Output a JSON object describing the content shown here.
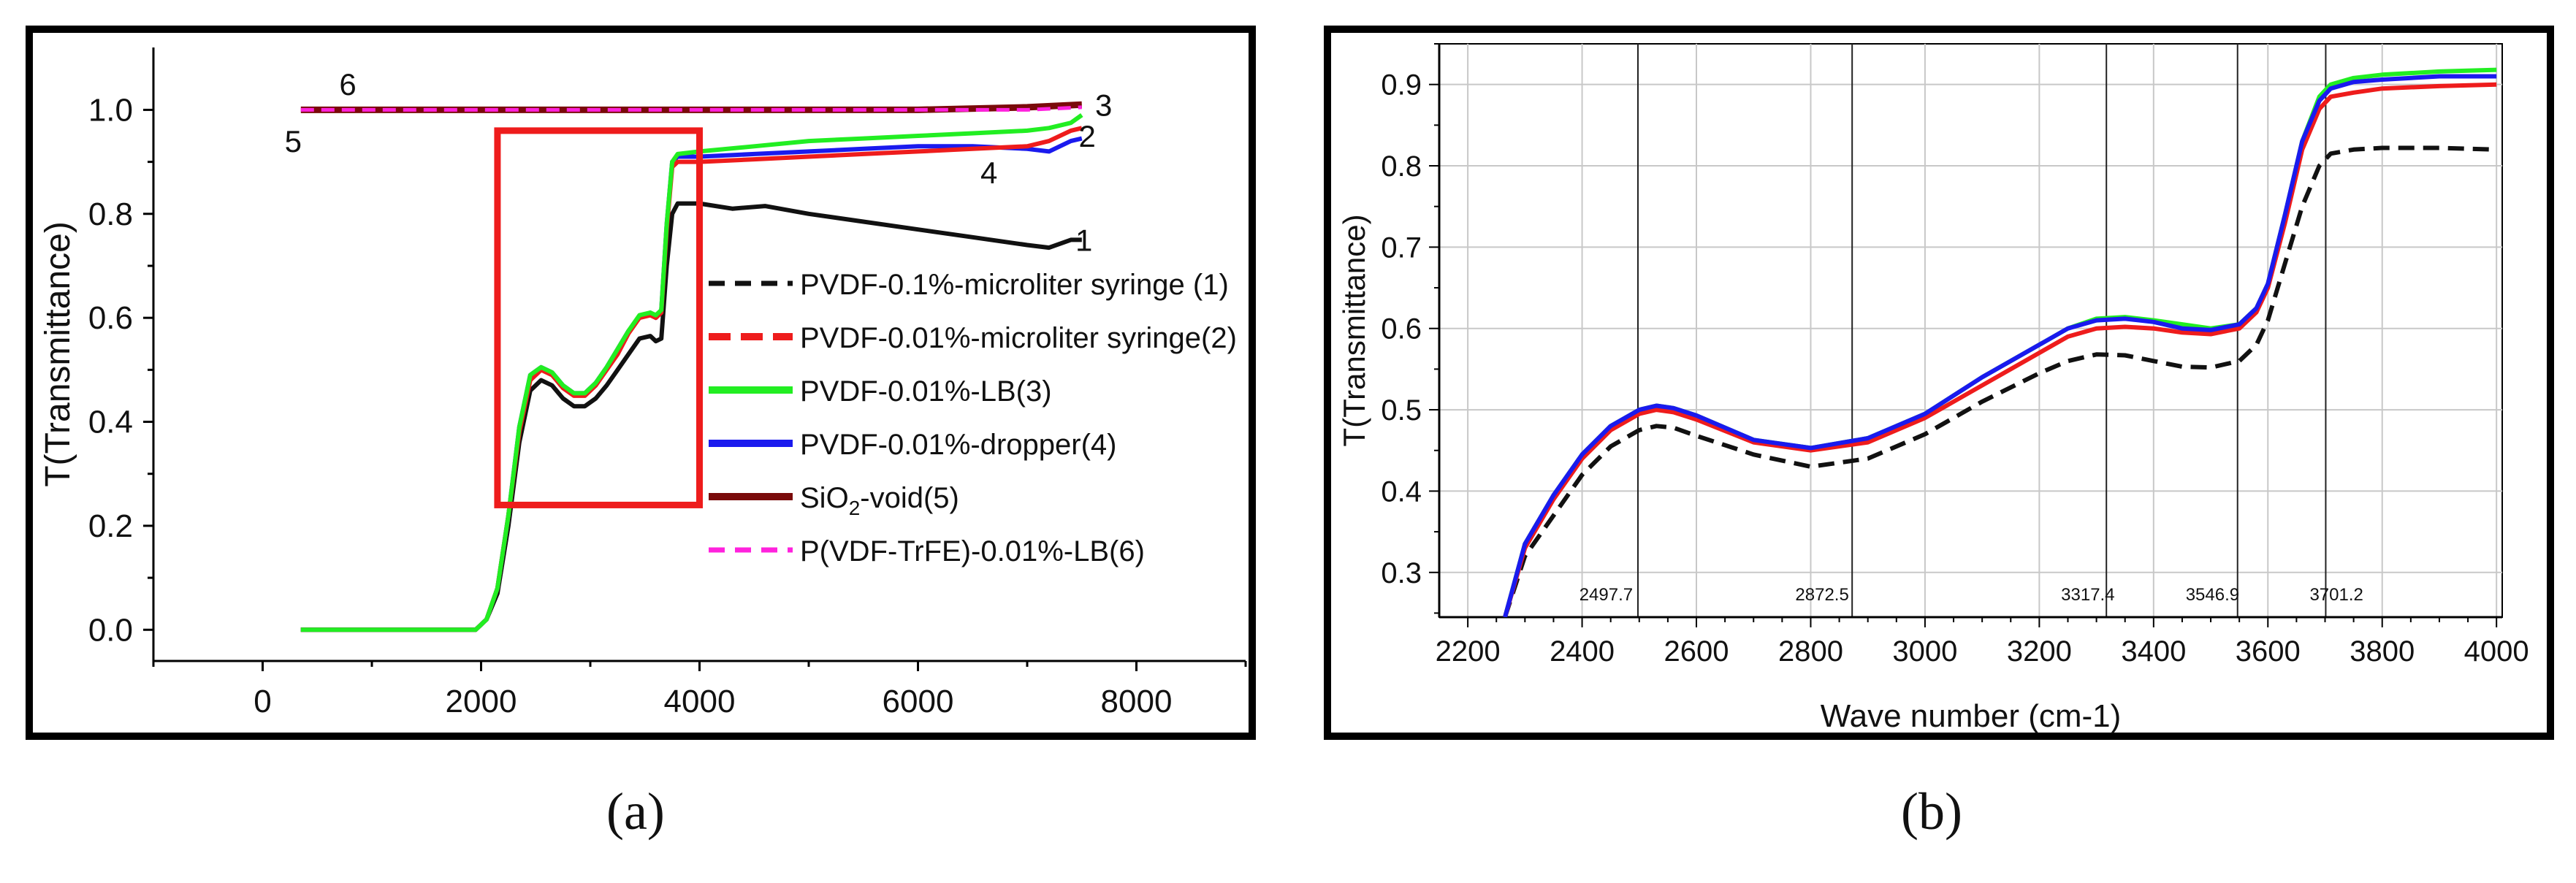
{
  "chart_data": [
    {
      "type": "line",
      "panel": "a",
      "xlabel": "",
      "ylabel": "T(Transmittance)",
      "xlim": [
        -1000,
        9000
      ],
      "ylim": [
        -0.06,
        1.12
      ],
      "xticks": [
        0,
        2000,
        4000,
        6000,
        8000
      ],
      "xtick_labels": [
        "0",
        "2000",
        "4000",
        "6000",
        "8000"
      ],
      "yticks": [
        0.0,
        0.2,
        0.4,
        0.6,
        0.8,
        1.0
      ],
      "ytick_labels": [
        "0.0",
        "0.2",
        "0.4",
        "0.6",
        "0.8",
        "1.0"
      ],
      "legend_position": "right",
      "highlight_box": {
        "x": [
          2150,
          4000
        ],
        "y": [
          0.24,
          0.96
        ],
        "color": "#ee1c1c"
      },
      "series": [
        {
          "name": "PVDF-0.1%-microliter syringe (1)",
          "color": "#111111",
          "dash": "dashed",
          "x": [
            350,
            1950,
            2050,
            2150,
            2250,
            2350,
            2450,
            2550,
            2650,
            2750,
            2850,
            2950,
            3050,
            3150,
            3250,
            3350,
            3450,
            3550,
            3600,
            3650,
            3700,
            3750,
            3800,
            4000,
            4300,
            4600,
            5000,
            5500,
            6000,
            6500,
            7000,
            7200,
            7400,
            7500
          ],
          "y": [
            0.0,
            0.0,
            0.02,
            0.07,
            0.2,
            0.36,
            0.46,
            0.48,
            0.47,
            0.445,
            0.43,
            0.43,
            0.445,
            0.47,
            0.5,
            0.53,
            0.56,
            0.565,
            0.555,
            0.56,
            0.7,
            0.8,
            0.82,
            0.82,
            0.81,
            0.815,
            0.8,
            0.785,
            0.77,
            0.755,
            0.74,
            0.735,
            0.75,
            0.75
          ]
        },
        {
          "name": "PVDF-0.01%-microliter syringe(2)",
          "color": "#ee1c1c",
          "dash": "dashed",
          "x": [
            350,
            1950,
            2050,
            2150,
            2250,
            2350,
            2450,
            2550,
            2650,
            2750,
            2850,
            2950,
            3050,
            3150,
            3250,
            3350,
            3450,
            3550,
            3600,
            3650,
            3700,
            3750,
            3800,
            4000,
            4500,
            5000,
            5500,
            6000,
            6500,
            7000,
            7200,
            7400,
            7500
          ],
          "y": [
            0.0,
            0.0,
            0.02,
            0.08,
            0.22,
            0.38,
            0.48,
            0.5,
            0.49,
            0.465,
            0.45,
            0.45,
            0.47,
            0.5,
            0.53,
            0.57,
            0.6,
            0.605,
            0.6,
            0.61,
            0.77,
            0.89,
            0.9,
            0.9,
            0.905,
            0.91,
            0.915,
            0.92,
            0.925,
            0.93,
            0.94,
            0.96,
            0.965
          ]
        },
        {
          "name": "PVDF-0.01%-LB(3)",
          "color": "#22ee22",
          "dash": "solid",
          "x": [
            350,
            1950,
            2050,
            2150,
            2250,
            2350,
            2450,
            2550,
            2650,
            2750,
            2850,
            2950,
            3050,
            3150,
            3250,
            3350,
            3450,
            3550,
            3600,
            3650,
            3700,
            3750,
            3800,
            4000,
            4500,
            5000,
            5500,
            6000,
            6500,
            7000,
            7200,
            7400,
            7500
          ],
          "y": [
            0.0,
            0.0,
            0.02,
            0.08,
            0.22,
            0.39,
            0.49,
            0.505,
            0.495,
            0.47,
            0.455,
            0.455,
            0.475,
            0.505,
            0.54,
            0.575,
            0.605,
            0.61,
            0.605,
            0.615,
            0.78,
            0.9,
            0.915,
            0.92,
            0.93,
            0.94,
            0.945,
            0.95,
            0.955,
            0.96,
            0.965,
            0.975,
            0.99
          ]
        },
        {
          "name": "PVDF-0.01%-dropper(4)",
          "color": "#1a1aee",
          "dash": "solid",
          "x": [
            350,
            1950,
            2050,
            2150,
            2250,
            2350,
            2450,
            2550,
            2650,
            2750,
            2850,
            2950,
            3050,
            3150,
            3250,
            3350,
            3450,
            3550,
            3600,
            3650,
            3700,
            3750,
            3800,
            4000,
            4500,
            5000,
            5500,
            6000,
            6500,
            7000,
            7200,
            7400,
            7500
          ],
          "y": [
            0.0,
            0.0,
            0.02,
            0.08,
            0.22,
            0.39,
            0.49,
            0.505,
            0.495,
            0.47,
            0.455,
            0.455,
            0.475,
            0.505,
            0.54,
            0.575,
            0.6,
            0.61,
            0.6,
            0.615,
            0.78,
            0.9,
            0.91,
            0.91,
            0.915,
            0.92,
            0.925,
            0.93,
            0.93,
            0.925,
            0.92,
            0.94,
            0.945
          ]
        },
        {
          "name": "SiO2-void(5)",
          "color": "#7a0a0a",
          "dash": "solid",
          "x": [
            350,
            2000,
            4000,
            6000,
            7000,
            7500
          ],
          "y": [
            1.0,
            1.0,
            1.0,
            1.0,
            1.005,
            1.01
          ]
        },
        {
          "name": "P(VDF-TrFE)-0.01%-LB(6)",
          "color": "#ff22dd",
          "dash": "dashed",
          "x": [
            350,
            2000,
            4000,
            6000,
            7000,
            7500
          ],
          "y": [
            1.0,
            1.0,
            1.0,
            1.0,
            1.0,
            1.005
          ]
        }
      ],
      "legend": [
        {
          "label": "PVDF-0.1%-microliter syringe (1)"
        },
        {
          "label": "PVDF-0.01%-microliter syringe(2)"
        },
        {
          "label": "PVDF-0.01%-LB(3)"
        },
        {
          "label": "PVDF-0.01%-dropper(4)"
        },
        {
          "label_main": "SiO",
          "label_sub": "2",
          "label_rest": "-void(5)"
        },
        {
          "label": "P(VDF-TrFE)-0.01%-LB(6)"
        }
      ],
      "curve_labels": [
        {
          "text": "1",
          "x": 7520,
          "y": 0.75
        },
        {
          "text": "2",
          "x": 7550,
          "y": 0.95
        },
        {
          "text": "3",
          "x": 7700,
          "y": 1.01
        },
        {
          "text": "4",
          "x": 6650,
          "y": 0.88
        },
        {
          "text": "5",
          "x": 280,
          "y": 0.94
        },
        {
          "text": "6",
          "x": 780,
          "y": 1.05
        }
      ]
    },
    {
      "type": "line",
      "panel": "b",
      "xlabel": "Wave number (cm-1)",
      "ylabel": "T(Transmittance)",
      "xlim": [
        2150,
        4010
      ],
      "ylim": [
        0.245,
        0.95
      ],
      "xticks": [
        2200,
        2400,
        2600,
        2800,
        3000,
        3200,
        3400,
        3600,
        3800,
        4000
      ],
      "xtick_labels": [
        "2200",
        "2400",
        "2600",
        "2800",
        "3000",
        "3200",
        "3400",
        "3600",
        "3800",
        "4000"
      ],
      "yticks": [
        0.3,
        0.4,
        0.5,
        0.6,
        0.7,
        0.8,
        0.9
      ],
      "ytick_labels": [
        "0.3",
        "0.4",
        "0.5",
        "0.6",
        "0.7",
        "0.8",
        "0.9"
      ],
      "vertical_markers": [
        2497.7,
        2872.5,
        3317.4,
        3546.9,
        3701.2
      ],
      "marker_labels": [
        {
          "text": "2497.7",
          "x": 2442
        },
        {
          "text": "2872.5",
          "x": 2820
        },
        {
          "text": "3317.4",
          "x": 3285
        },
        {
          "text": "3546.9",
          "x": 3503
        },
        {
          "text": "3701.2",
          "x": 3720
        }
      ],
      "series": [
        {
          "name": "PVDF-0.1%-microliter syringe (1)",
          "color": "#111111",
          "dash": "dashed",
          "x": [
            2265,
            2300,
            2350,
            2400,
            2450,
            2500,
            2530,
            2560,
            2600,
            2700,
            2800,
            2900,
            3000,
            3100,
            3200,
            3250,
            3300,
            3350,
            3400,
            3450,
            3500,
            3550,
            3580,
            3600,
            3630,
            3660,
            3690,
            3710,
            3750,
            3800,
            3900,
            4000
          ],
          "y": [
            0.245,
            0.32,
            0.37,
            0.42,
            0.455,
            0.475,
            0.48,
            0.478,
            0.468,
            0.445,
            0.43,
            0.44,
            0.47,
            0.51,
            0.545,
            0.56,
            0.568,
            0.567,
            0.56,
            0.553,
            0.552,
            0.56,
            0.58,
            0.61,
            0.68,
            0.75,
            0.8,
            0.815,
            0.82,
            0.822,
            0.822,
            0.82
          ]
        },
        {
          "name": "PVDF-0.01%-microliter syringe(2)",
          "color": "#ee1c1c",
          "dash": "solid",
          "x": [
            2265,
            2300,
            2350,
            2400,
            2450,
            2500,
            2530,
            2560,
            2600,
            2700,
            2800,
            2900,
            3000,
            3100,
            3200,
            3250,
            3300,
            3350,
            3400,
            3450,
            3500,
            3550,
            3580,
            3600,
            3630,
            3660,
            3690,
            3710,
            3750,
            3800,
            3900,
            4000
          ],
          "y": [
            0.245,
            0.33,
            0.39,
            0.44,
            0.475,
            0.495,
            0.5,
            0.497,
            0.488,
            0.46,
            0.45,
            0.46,
            0.49,
            0.53,
            0.57,
            0.59,
            0.6,
            0.602,
            0.6,
            0.595,
            0.593,
            0.6,
            0.62,
            0.65,
            0.73,
            0.82,
            0.87,
            0.885,
            0.89,
            0.895,
            0.898,
            0.9
          ]
        },
        {
          "name": "PVDF-0.01%-LB(3)",
          "color": "#22ee22",
          "dash": "solid",
          "x": [
            2265,
            2300,
            2350,
            2400,
            2450,
            2500,
            2530,
            2560,
            2600,
            2700,
            2800,
            2900,
            3000,
            3100,
            3200,
            3250,
            3300,
            3350,
            3400,
            3450,
            3500,
            3550,
            3580,
            3600,
            3630,
            3660,
            3690,
            3710,
            3750,
            3800,
            3900,
            4000
          ],
          "y": [
            0.245,
            0.335,
            0.395,
            0.445,
            0.48,
            0.5,
            0.505,
            0.502,
            0.493,
            0.463,
            0.453,
            0.465,
            0.495,
            0.54,
            0.58,
            0.6,
            0.612,
            0.614,
            0.61,
            0.605,
            0.6,
            0.605,
            0.625,
            0.655,
            0.74,
            0.83,
            0.885,
            0.9,
            0.908,
            0.912,
            0.916,
            0.918
          ]
        },
        {
          "name": "PVDF-0.01%-dropper(4)",
          "color": "#1a1aee",
          "dash": "solid",
          "x": [
            2265,
            2300,
            2350,
            2400,
            2450,
            2500,
            2530,
            2560,
            2600,
            2700,
            2800,
            2900,
            3000,
            3100,
            3200,
            3250,
            3300,
            3350,
            3400,
            3450,
            3500,
            3550,
            3580,
            3600,
            3630,
            3660,
            3690,
            3710,
            3750,
            3800,
            3900,
            4000
          ],
          "y": [
            0.245,
            0.335,
            0.395,
            0.445,
            0.48,
            0.5,
            0.505,
            0.502,
            0.493,
            0.463,
            0.453,
            0.465,
            0.495,
            0.54,
            0.58,
            0.6,
            0.61,
            0.612,
            0.608,
            0.6,
            0.598,
            0.605,
            0.625,
            0.655,
            0.74,
            0.83,
            0.88,
            0.895,
            0.903,
            0.906,
            0.91,
            0.91
          ]
        }
      ]
    }
  ],
  "panel_labels": {
    "a": "(a)",
    "b": "(b)"
  }
}
